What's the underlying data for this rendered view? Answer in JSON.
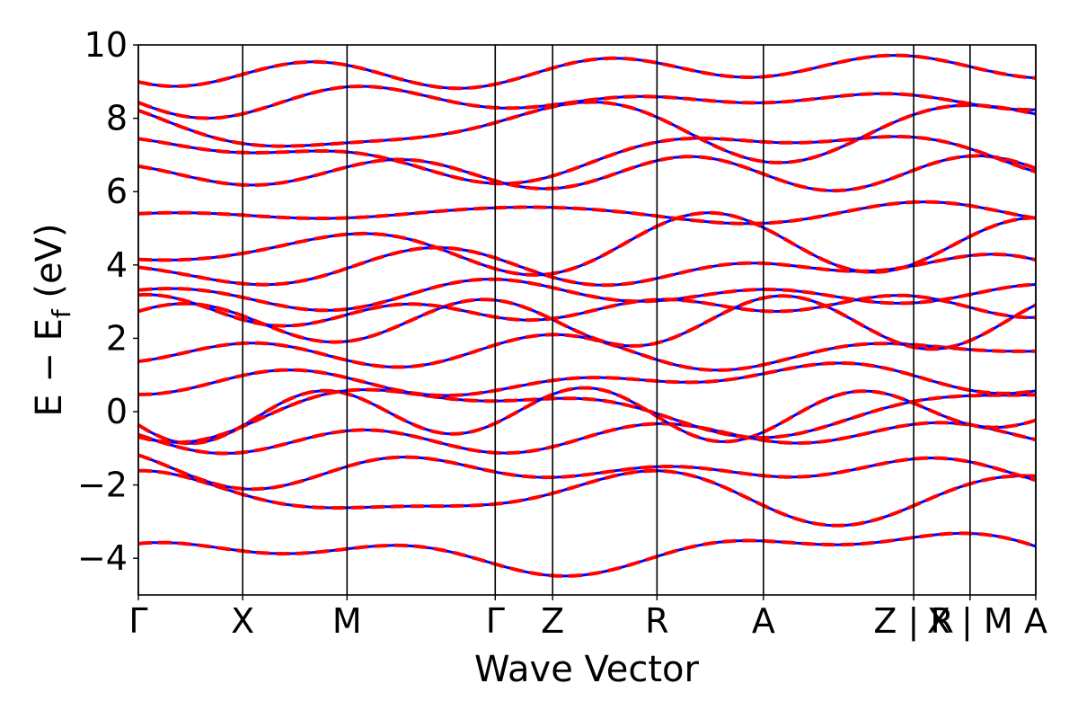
{
  "chart_data": {
    "type": "line",
    "title": "",
    "xlabel": "Wave Vector",
    "ylabel": "E − E",
    "ylabel_sub": "f",
    "ylabel_unit": " (eV)",
    "ylim": [
      -5,
      10
    ],
    "yticks": [
      {
        "value": -4,
        "label": "−4"
      },
      {
        "value": -2,
        "label": "−2"
      },
      {
        "value": 0,
        "label": "0"
      },
      {
        "value": 2,
        "label": "2"
      },
      {
        "value": 4,
        "label": "4"
      },
      {
        "value": 6,
        "label": "6"
      },
      {
        "value": 8,
        "label": "8"
      },
      {
        "value": 10,
        "label": "10"
      }
    ],
    "xlim": [
      0,
      8.6
    ],
    "high_symmetry_points": [
      {
        "x": 0.0,
        "label": "Γ"
      },
      {
        "x": 1.0,
        "label": "X"
      },
      {
        "x": 2.0,
        "label": "M"
      },
      {
        "x": 3.42,
        "label": "Γ"
      },
      {
        "x": 3.97,
        "label": "Z"
      },
      {
        "x": 4.97,
        "label": "R"
      },
      {
        "x": 5.99,
        "label": "A"
      },
      {
        "x": 7.43,
        "label": "Z | R"
      },
      {
        "x": 7.97,
        "label": "X | M"
      },
      {
        "x": 8.6,
        "label": "A"
      }
    ],
    "grid": false,
    "legend": "none",
    "series_colors": [
      "#0000ff",
      "#ff0000"
    ],
    "series_styles": [
      "solid",
      "dashed"
    ],
    "bands_at_gamma": [
      -3.85,
      -2.3,
      -1.6,
      -0.7,
      -0.05,
      0.05,
      0.85,
      1.6,
      2.45,
      2.8,
      3.2,
      3.9,
      4.5,
      5.4,
      6.5,
      7.0,
      7.7,
      8.5,
      9.3
    ]
  }
}
